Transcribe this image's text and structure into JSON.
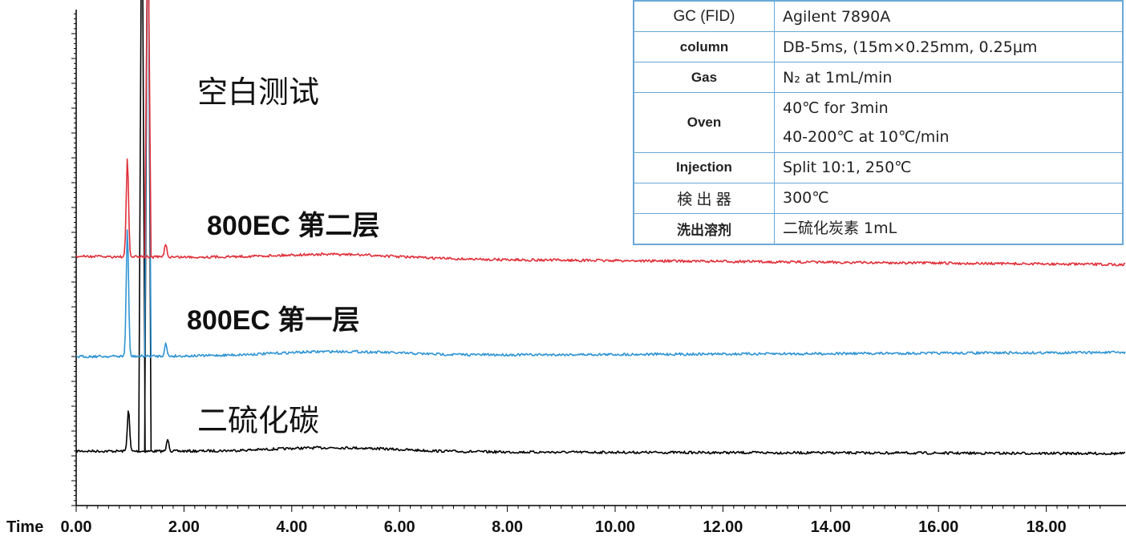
{
  "chart_data": {
    "type": "line",
    "xlabel": "Time",
    "xlim": [
      0,
      19
    ],
    "x_ticks": [
      "0.00",
      "2.00",
      "4.00",
      "6.00",
      "8.00",
      "10.00",
      "12.00",
      "14.00",
      "16.00",
      "18.00"
    ],
    "x_tick_values": [
      0,
      2,
      4,
      6,
      8,
      10,
      12,
      14,
      16,
      18
    ],
    "series": [
      {
        "name": "空白测试",
        "color": "#000000"
      },
      {
        "name": "800EC 第二层",
        "color": "#e0303a"
      },
      {
        "name": "800EC 第一层",
        "color": "#2f94d4"
      },
      {
        "name": "二硫化碳",
        "color": "#000000"
      }
    ]
  },
  "labels": {
    "blank": "空白测试",
    "layer2": "800EC 第二层",
    "layer1": "800EC 第一层",
    "cs2": "二硫化碳"
  },
  "table": {
    "rows": [
      {
        "key": "GC (FID)",
        "bold": false,
        "value": [
          "Agilent 7890A"
        ]
      },
      {
        "key": "column",
        "bold": true,
        "value": [
          "DB-5ms, (15m×0.25mm, 0.25μm"
        ]
      },
      {
        "key": "Gas",
        "bold": true,
        "value": [
          "N₂ at 1mL/min"
        ]
      },
      {
        "key": "Oven",
        "bold": true,
        "value": [
          "40℃ for 3min",
          "40-200℃ at 10℃/min"
        ]
      },
      {
        "key": "Injection",
        "bold": true,
        "value": [
          "Split 10:1, 250℃"
        ]
      },
      {
        "key": "検 出 器",
        "bold": false,
        "value": [
          "300℃"
        ]
      },
      {
        "key": "洗出溶剂",
        "bold": true,
        "value": [
          "二硫化炭素 1mL"
        ]
      }
    ]
  }
}
